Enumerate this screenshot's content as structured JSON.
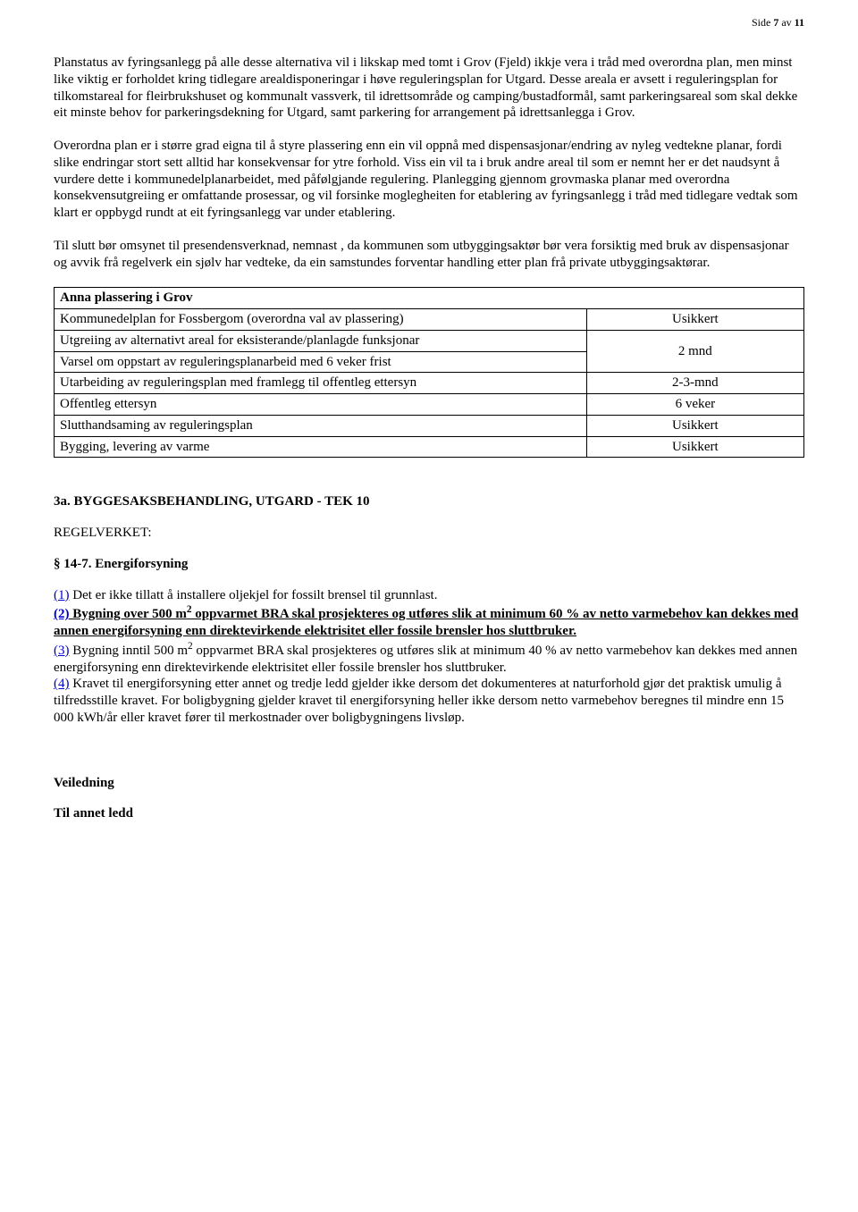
{
  "header": {
    "side_prefix": "Side ",
    "page_current": "7",
    "av": " av ",
    "page_total": "11"
  },
  "paragraphs": {
    "p1": "Planstatus av fyringsanlegg på alle desse alternativa vil i likskap med tomt i Grov (Fjeld) ikkje vera i tråd med overordna plan, men minst like viktig er forholdet kring tidlegare arealdisponeringar i høve reguleringsplan for Utgard. Desse areala er avsett i reguleringsplan for tilkomstareal for fleirbrukshuset og kommunalt vassverk, til idrettsområde og camping/bustadformål, samt parkeringsareal som skal dekke eit minste behov for parkeringsdekning for Utgard, samt parkering for arrangement på idrettsanlegga i Grov.",
    "p2": "Overordna plan er i større grad eigna til å styre plassering enn ein vil oppnå med dispensasjonar/endring av nyleg vedtekne planar, fordi slike endringar stort sett alltid har konsekvensar for ytre forhold. Viss ein vil ta i bruk andre areal til som er nemnt her er det naudsynt å vurdere dette i kommunedelplanarbeidet, med påfølgjande regulering. Planlegging gjennom grovmaska planar med overordna konsekvensutgreiing er omfattande prosessar, og vil forsinke moglegheiten for etablering av fyringsanlegg i tråd med tidlegare vedtak som klart er oppbygd rundt at eit fyringsanlegg var under etablering.",
    "p3": "Til slutt bør omsynet til presendensverknad, nemnast , da  kommunen som utbyggingsaktør bør vera forsiktig med bruk av dispensasjonar og avvik frå regelverk ein sjølv har vedteke, da ein samstundes forventar handling etter plan frå private utbyggingsaktørar."
  },
  "table": {
    "header_left": "Anna plassering i Grov",
    "rows": [
      {
        "left": "Kommunedelplan for Fossbergom (overordna val av plassering)",
        "right": "Usikkert",
        "merge_below": false
      },
      {
        "left": "Utgreiing av alternativt areal for eksisterande/planlagde funksjonar",
        "right": "2 mnd",
        "merge_below": true
      },
      {
        "left": "Varsel om oppstart av reguleringsplanarbeid med 6 veker frist",
        "right": "",
        "merge_below": false
      },
      {
        "left": "Utarbeiding av reguleringsplan med framlegg til offentleg ettersyn",
        "right": "2-3-mnd",
        "merge_below": false
      },
      {
        "left": "Offentleg ettersyn",
        "right": "6 veker",
        "merge_below": false
      },
      {
        "left": "Slutthandsaming av reguleringsplan",
        "right": "Usikkert",
        "merge_below": false
      },
      {
        "left": "Bygging, levering av varme",
        "right": "Usikkert",
        "merge_below": false
      }
    ]
  },
  "section3a": {
    "heading": "3a. BYGGESAKSBEHANDLING, UTGARD -  TEK 10",
    "regelverket": "REGELVERKET:",
    "law_heading": "§ 14-7. Energiforsyning",
    "item1": {
      "link": "(1)",
      "text": " Det er ikke tillatt å installere oljekjel for fossilt brensel til grunnlast."
    },
    "item2": {
      "link": "(2)",
      "text_a": " Bygning over 500 m",
      "sup": "2",
      "text_b": " oppvarmet BRA skal prosjekteres og utføres slik at minimum 60 % av netto varmebehov kan dekkes med annen energiforsyning enn direktevirkende elektrisitet eller fossile brensler hos sluttbruker."
    },
    "item3": {
      "link": "(3)",
      "text_a": " Bygning inntil 500 m",
      "sup": "2",
      "text_b": " oppvarmet BRA skal prosjekteres og utføres slik at minimum 40 % av netto varmebehov kan dekkes med annen energiforsyning enn direktevirkende elektrisitet eller fossile brensler hos sluttbruker."
    },
    "item4": {
      "link": "(4)",
      "text": " Kravet til energiforsyning etter annet og tredje ledd gjelder ikke dersom det dokumenteres at naturforhold gjør det praktisk umulig å tilfredsstille kravet. For boligbygning gjelder kravet til energiforsyning heller ikke dersom netto varmebehov beregnes til mindre enn 15 000 kWh/år eller kravet fører til merkostnader over boligbygningens livsløp."
    },
    "veiledning": "Veiledning",
    "til_annet": "Til annet ledd"
  }
}
